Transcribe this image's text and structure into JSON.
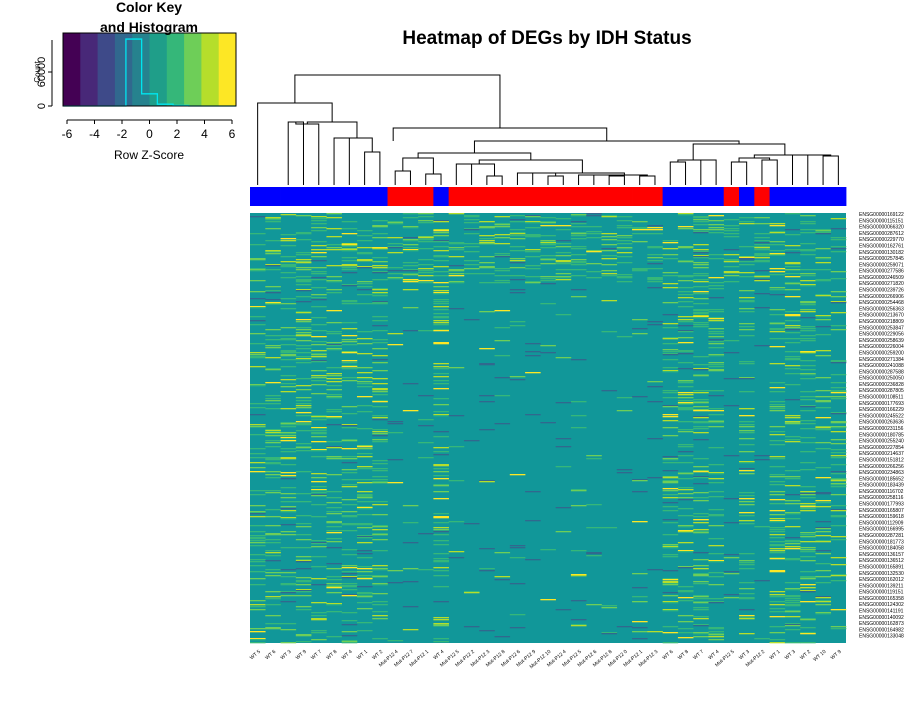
{
  "chart_data": {
    "type": "heatmap",
    "title": "Heatmap of DEGs by IDH Status",
    "colnames": [
      "WT 5",
      "WT 6",
      "WT 3",
      "WT 9",
      "WT 7",
      "WT 8",
      "WT 4",
      "WT 1",
      "WT 2",
      "Mut-P12 4",
      "Mut-P12 7",
      "Mut-P12 1",
      "WT 4",
      "Mut-P12 5",
      "Mut-P12 2",
      "Mut-P12 3",
      "Mut-P12 8",
      "Mut-P12 6",
      "Mut-P12 9",
      "Mut-P12 10",
      "Mut-P12 4",
      "Mut-P12 5",
      "Mut-P12 6",
      "Mut-P12 8",
      "Mut-P12 0",
      "Mut-P12 1",
      "Mut-P12 3",
      "WT 6",
      "WT 8",
      "WT 7",
      "WT 4",
      "Mut-P12 5",
      "WT 3",
      "Mut-P12 2",
      "WT 1",
      "WT 3",
      "WT 2",
      "WT 10",
      "WT 9"
    ],
    "col_groups": [
      "WT",
      "WT",
      "WT",
      "WT",
      "WT",
      "WT",
      "WT",
      "WT",
      "WT",
      "Mut",
      "Mut",
      "Mut",
      "WT",
      "Mut",
      "Mut",
      "Mut",
      "Mut",
      "Mut",
      "Mut",
      "Mut",
      "Mut",
      "Mut",
      "Mut",
      "Mut",
      "Mut",
      "Mut",
      "Mut",
      "WT",
      "WT",
      "WT",
      "WT",
      "Mut",
      "WT",
      "Mut",
      "WT",
      "WT",
      "WT",
      "WT",
      "WT"
    ],
    "group_colors": {
      "WT": "#0000ff",
      "Mut": "#ff0000"
    },
    "rownames": [
      "ENSG00000169122",
      "ENSG00000115151",
      "ENSG00000066320",
      "ENSG00000287612",
      "ENSG00000229770",
      "ENSG00000162761",
      "ENSG00000130182",
      "ENSG00000257845",
      "ENSG00000259071",
      "ENSG00000277586",
      "ENSG00000246509",
      "ENSG00000271820",
      "ENSG00000239726",
      "ENSG00000266906",
      "ENSG00000254468",
      "ENSG00000256363",
      "ENSG00000213670",
      "ENSG00000218809",
      "ENSG00000253847",
      "ENSG00000229056",
      "ENSG00000258639",
      "ENSG00000226004",
      "ENSG00000259200",
      "ENSG00000271384",
      "ENSG00000241088",
      "ENSG00000287588",
      "ENSG00000250050",
      "ENSG00000236828",
      "ENSG00000287805",
      "ENSG00000108511",
      "ENSG00000177693",
      "ENSG00000166229",
      "ENSG00000245522",
      "ENSG00000263636",
      "ENSG00000231156",
      "ENSG00000180785",
      "ENSG00000255240",
      "ENSG00000227854",
      "ENSG00000214637",
      "ENSG00000151812",
      "ENSG00000266256",
      "ENSG00000234863",
      "ENSG00000185652",
      "ENSG00000183439",
      "ENSG00000116702",
      "ENSG00000258116",
      "ENSG00000177993",
      "ENSG00000165807",
      "ENSG00000159618",
      "ENSG00000112909",
      "ENSG00000166995",
      "ENSG00000287281",
      "ENSG00000181773",
      "ENSG00000184058",
      "ENSG00000136157",
      "ENSG00000136512",
      "ENSG00000165891",
      "ENSG00000132530",
      "ENSG00000162012",
      "ENSG00000139211",
      "ENSG00000119151",
      "ENSG00000165358",
      "ENSG00000124302",
      "ENSG00000141191",
      "ENSG00000140092",
      "ENSG00000162873",
      "ENSG00000164982",
      "ENSG00000133048"
    ],
    "key": {
      "title": "Color Key\nand Histogram",
      "xlabel": "Row Z-Score",
      "ylabel": "Count",
      "xticks": [
        "-6",
        "-4",
        "-2",
        "0",
        "2",
        "4",
        "6"
      ],
      "yticks": [
        "0",
        "60000"
      ],
      "hist_counts": [
        0,
        0,
        0,
        0,
        110000,
        20000,
        3000,
        1000,
        0,
        0,
        0
      ]
    },
    "palette": [
      "#440154",
      "#482878",
      "#3e4a89",
      "#31688e",
      "#26828e",
      "#1f9e89",
      "#35b779",
      "#6ece58",
      "#b5de2b",
      "#fde725"
    ],
    "background_color": "#119799"
  }
}
